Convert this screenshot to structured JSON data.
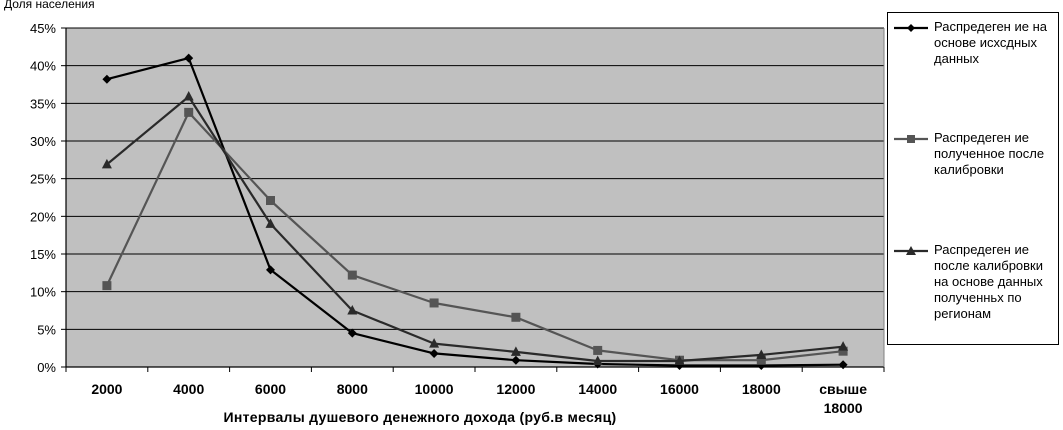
{
  "chart_data": {
    "type": "line",
    "title": "",
    "ylabel": "Доля населения",
    "xlabel": "Интервалы душевого денежного дохода (руб.в месяц)",
    "categories": [
      "2000",
      "4000",
      "6000",
      "8000",
      "10000",
      "12000",
      "14000",
      "16000",
      "18000",
      "свыше 18000"
    ],
    "ylim": [
      0,
      45
    ],
    "y_ticks": [
      "0%",
      "5%",
      "10%",
      "15%",
      "20%",
      "25%",
      "30%",
      "35%",
      "40%",
      "45%"
    ],
    "grid": "horizontal",
    "legend_position": "right",
    "series": [
      {
        "name": "Распредеген ие на основе исхсдных данных",
        "marker": "diamond",
        "color": "#000000",
        "values": [
          38.2,
          41.0,
          12.9,
          4.5,
          1.8,
          0.9,
          0.4,
          0.2,
          0.2,
          0.3
        ]
      },
      {
        "name": "Распредеген ие полученное после калибровки",
        "marker": "square",
        "color": "#555555",
        "values": [
          10.8,
          33.8,
          22.1,
          12.2,
          8.5,
          6.6,
          2.2,
          0.9,
          0.9,
          2.1
        ]
      },
      {
        "name": "Распредеген ие после калибровки на основе данных полученньх по регионам",
        "marker": "triangle",
        "color": "#2a2a2a",
        "values": [
          26.9,
          35.9,
          19.0,
          7.5,
          3.1,
          2.0,
          0.8,
          0.8,
          1.6,
          2.7
        ]
      }
    ]
  },
  "legend": [
    "Распредеген ие на основе исхсдных данных",
    "Распредеген ие полученное после калибровки",
    "Распредеген ие после калибровки на основе данных полученньх по регионам"
  ]
}
